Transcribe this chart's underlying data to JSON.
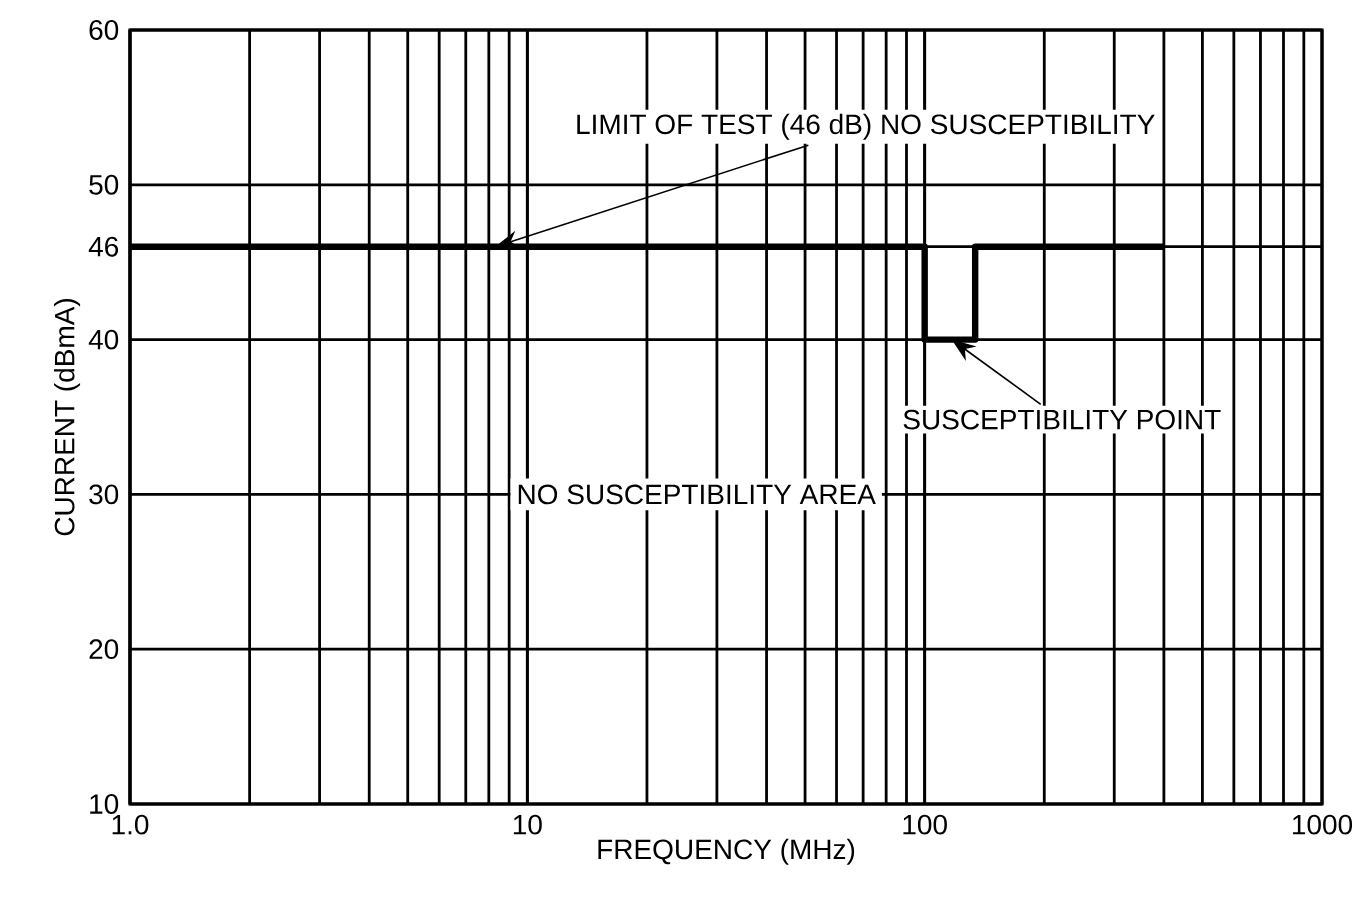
{
  "chart_data": {
    "type": "line",
    "xlabel": "FREQUENCY (MHz)",
    "ylabel": "CURRENT (dBmA)",
    "log": "x",
    "xlim": [
      1,
      1000
    ],
    "ylim": [
      10,
      60
    ],
    "xticks": [
      {
        "value": 1,
        "label": "1.0"
      },
      10,
      100,
      1000
    ],
    "yticks": [
      10,
      20,
      30,
      40,
      46,
      50,
      60
    ],
    "grid": true,
    "line_style": "solid",
    "marker": "none",
    "series": [
      {
        "color": "#000000",
        "x": [
          1,
          100,
          100,
          134,
          134,
          400
        ],
        "values": [
          46,
          46,
          40,
          40,
          46,
          46
        ]
      }
    ],
    "annotations": [
      {
        "text": "LIMIT OF TEST (46 dB) NO SUSCEPTIBILITY",
        "x": 8.3,
        "y": 46
      },
      {
        "text": "SUSCEPTIBILITY POINT",
        "x": 117,
        "y": 40
      },
      "NO SUSCEPTIBILITY AREA"
    ]
  }
}
